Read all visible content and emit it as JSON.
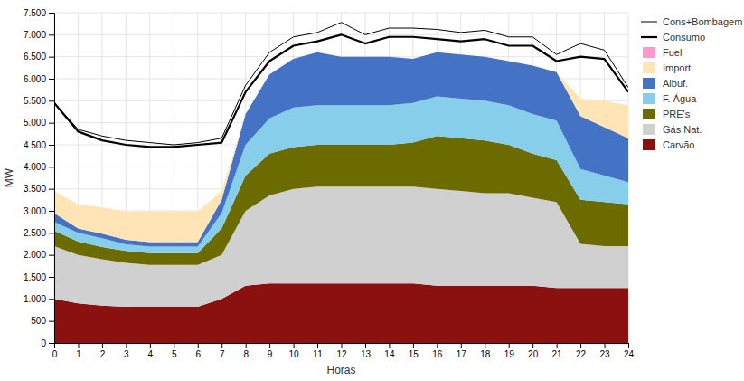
{
  "chart_data": {
    "type": "area",
    "stacked": true,
    "grid": true,
    "legend": "right",
    "xlabel": "Horas",
    "ylabel": "MW",
    "x": [
      0,
      1,
      2,
      3,
      4,
      5,
      6,
      7,
      8,
      9,
      10,
      11,
      12,
      13,
      14,
      15,
      16,
      17,
      18,
      19,
      20,
      21,
      22,
      23,
      24
    ],
    "xlim": [
      0,
      24
    ],
    "xticks": [
      0,
      1,
      2,
      3,
      4,
      5,
      6,
      7,
      8,
      9,
      10,
      11,
      12,
      13,
      14,
      15,
      16,
      17,
      18,
      19,
      20,
      21,
      22,
      23,
      24
    ],
    "ylim": [
      0,
      7500
    ],
    "yticks": [
      0,
      500,
      {
        "value": 1000,
        "label": "1.000"
      },
      {
        "value": 1500,
        "label": "1.500"
      },
      {
        "value": 2000,
        "label": "2.000"
      },
      {
        "value": 2500,
        "label": "2.500"
      },
      {
        "value": 3000,
        "label": "3.000"
      },
      {
        "value": 3500,
        "label": "3.500"
      },
      {
        "value": 4000,
        "label": "4.000"
      },
      {
        "value": 4500,
        "label": "4.500"
      },
      {
        "value": 5000,
        "label": "5.000"
      },
      {
        "value": 5500,
        "label": "5.500"
      },
      {
        "value": 6000,
        "label": "6.000"
      },
      {
        "value": 6500,
        "label": "6.500"
      },
      {
        "value": 7000,
        "label": "7.000"
      },
      {
        "value": 7500,
        "label": "7.500"
      }
    ],
    "series": [
      {
        "name": "Carvão",
        "type": "area",
        "color": "#8B1010",
        "values": [
          1000,
          900,
          850,
          820,
          820,
          820,
          820,
          1000,
          1300,
          1350,
          1350,
          1350,
          1350,
          1350,
          1350,
          1350,
          1300,
          1300,
          1300,
          1300,
          1300,
          1250,
          1250,
          1250,
          1250
        ]
      },
      {
        "name": "Gás Nat.",
        "type": "area",
        "color": "#D0D0D0",
        "values": [
          1200,
          1100,
          1050,
          1000,
          950,
          950,
          950,
          1000,
          1700,
          2000,
          2150,
          2200,
          2200,
          2200,
          2200,
          2200,
          2200,
          2150,
          2100,
          2100,
          2000,
          1950,
          1000,
          950,
          950
        ]
      },
      {
        "name": "PRE's",
        "type": "area",
        "color": "#6B6B00",
        "values": [
          350,
          300,
          280,
          270,
          270,
          270,
          270,
          600,
          800,
          950,
          950,
          950,
          950,
          950,
          950,
          1000,
          1200,
          1200,
          1200,
          1100,
          1000,
          950,
          1000,
          1000,
          950
        ]
      },
      {
        "name": "F. Água",
        "type": "area",
        "color": "#87CEEB",
        "values": [
          200,
          200,
          200,
          150,
          150,
          150,
          150,
          350,
          700,
          800,
          900,
          900,
          900,
          900,
          900,
          900,
          900,
          900,
          900,
          900,
          900,
          900,
          700,
          600,
          500
        ]
      },
      {
        "name": "Albuf.",
        "type": "area",
        "color": "#4472C4",
        "values": [
          200,
          100,
          100,
          100,
          100,
          100,
          100,
          300,
          700,
          1000,
          1100,
          1200,
          1100,
          1100,
          1100,
          1000,
          1000,
          1000,
          1000,
          1000,
          1100,
          1100,
          1200,
          1100,
          1000
        ]
      },
      {
        "name": "Import",
        "type": "area",
        "color": "#FFE4B5",
        "values": [
          500,
          550,
          600,
          650,
          700,
          700,
          700,
          200,
          0,
          0,
          0,
          0,
          0,
          0,
          0,
          0,
          0,
          0,
          0,
          0,
          0,
          0,
          400,
          600,
          750
        ]
      },
      {
        "name": "Fuel",
        "type": "area",
        "color": "#FF99CC",
        "values": [
          0,
          0,
          0,
          0,
          0,
          0,
          0,
          0,
          0,
          0,
          0,
          0,
          0,
          0,
          0,
          0,
          0,
          0,
          0,
          0,
          0,
          0,
          0,
          0,
          0
        ]
      },
      {
        "name": "Cons+Bombagem",
        "type": "line",
        "color": "black",
        "line_style": "solid",
        "values": [
          5450,
          4850,
          4700,
          4600,
          4550,
          4500,
          4550,
          4650,
          5850,
          6600,
          6950,
          7050,
          7280,
          7000,
          7150,
          7150,
          7120,
          7050,
          7100,
          6950,
          6950,
          6550,
          6800,
          6650,
          5800
        ]
      },
      {
        "name": "Consumo",
        "type": "line",
        "color": "black",
        "line_style": "solid",
        "values": [
          5450,
          4800,
          4600,
          4500,
          4450,
          4450,
          4500,
          4550,
          5700,
          6400,
          6750,
          6850,
          7000,
          6800,
          6950,
          6950,
          6900,
          6850,
          6900,
          6750,
          6750,
          6400,
          6500,
          6450,
          5700
        ]
      }
    ]
  }
}
